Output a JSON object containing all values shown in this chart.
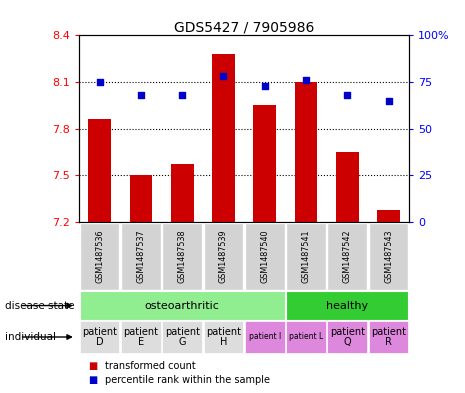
{
  "title": "GDS5427 / 7905986",
  "samples": [
    "GSM1487536",
    "GSM1487537",
    "GSM1487538",
    "GSM1487539",
    "GSM1487540",
    "GSM1487541",
    "GSM1487542",
    "GSM1487543"
  ],
  "bar_values": [
    7.86,
    7.5,
    7.57,
    8.28,
    7.95,
    8.1,
    7.65,
    7.28
  ],
  "dot_values": [
    75,
    68,
    68,
    78,
    73,
    76,
    68,
    65
  ],
  "ymin": 7.2,
  "ymax": 8.4,
  "y2min": 0,
  "y2max": 100,
  "yticks": [
    7.2,
    7.5,
    7.8,
    8.1,
    8.4
  ],
  "y2ticks": [
    0,
    25,
    50,
    75,
    100
  ],
  "bar_color": "#cc0000",
  "dot_color": "#0000cc",
  "sample_box_color": "#d3d3d3",
  "disease_blocks": [
    {
      "label": "osteoarthritic",
      "start": 0,
      "end": 4,
      "color": "#90ee90"
    },
    {
      "label": "healthy",
      "start": 5,
      "end": 7,
      "color": "#33cc33"
    }
  ],
  "individual_labels": [
    "patient\nD",
    "patient\nE",
    "patient\nG",
    "patient\nH",
    "patient I",
    "patient L",
    "patient\nQ",
    "patient\nR"
  ],
  "individual_bg": [
    "#dddddd",
    "#dddddd",
    "#dddddd",
    "#dddddd",
    "#dd88dd",
    "#dd88dd",
    "#dd88dd",
    "#dd88dd"
  ],
  "individual_fontsize": [
    7,
    7,
    7,
    7,
    5.5,
    5.5,
    7,
    7
  ]
}
